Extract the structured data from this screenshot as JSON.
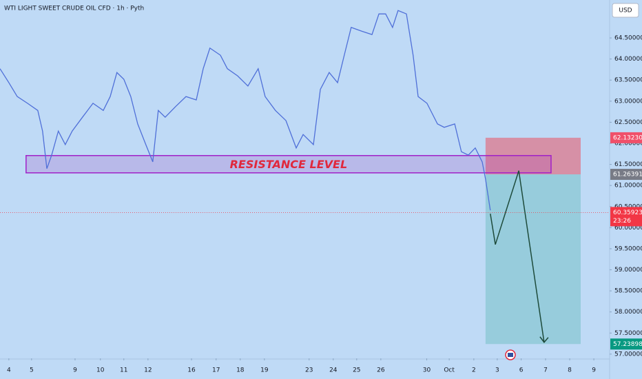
{
  "chart_data": {
    "type": "line",
    "title": "WTI LIGHT SWEET CRUDE OIL CFD · 1h · Pyth",
    "currency": "USD",
    "xlim": [
      -0.37,
      25.13
    ],
    "ylim": [
      56.9,
      65.4
    ],
    "xticks": [
      {
        "value": 0,
        "label": "4"
      },
      {
        "value": 0.95,
        "label": "5"
      },
      {
        "value": 2.77,
        "label": "9"
      },
      {
        "value": 3.83,
        "label": "10"
      },
      {
        "value": 4.81,
        "label": "11"
      },
      {
        "value": 5.82,
        "label": "12"
      },
      {
        "value": 7.64,
        "label": "16"
      },
      {
        "value": 8.67,
        "label": "17"
      },
      {
        "value": 9.68,
        "label": "18"
      },
      {
        "value": 10.69,
        "label": "19"
      },
      {
        "value": 12.56,
        "label": "23"
      },
      {
        "value": 13.57,
        "label": "24"
      },
      {
        "value": 14.55,
        "label": "25"
      },
      {
        "value": 15.56,
        "label": "26"
      },
      {
        "value": 17.48,
        "label": "30"
      },
      {
        "value": 18.42,
        "label": "Oct"
      },
      {
        "value": 19.45,
        "label": "2"
      },
      {
        "value": 20.43,
        "label": "3"
      },
      {
        "value": 21.43,
        "label": "6"
      },
      {
        "value": 22.45,
        "label": "7"
      },
      {
        "value": 23.46,
        "label": "8"
      },
      {
        "value": 24.47,
        "label": "9"
      }
    ],
    "yticks": [
      {
        "value": 57.0,
        "label": "57.00000"
      },
      {
        "value": 57.5,
        "label": "57.50000"
      },
      {
        "value": 58.0,
        "label": "58.00000"
      },
      {
        "value": 58.5,
        "label": "58.50000"
      },
      {
        "value": 59.0,
        "label": "59.00000"
      },
      {
        "value": 59.5,
        "label": "59.50000"
      },
      {
        "value": 60.0,
        "label": "60.00000"
      },
      {
        "value": 60.5,
        "label": "60.50000"
      },
      {
        "value": 61.0,
        "label": "61.00000"
      },
      {
        "value": 61.5,
        "label": "61.50000"
      },
      {
        "value": 62.0,
        "label": "62.00000"
      },
      {
        "value": 62.5,
        "label": "62.50000"
      },
      {
        "value": 63.0,
        "label": "63.00000"
      },
      {
        "value": 63.5,
        "label": "63.50000"
      },
      {
        "value": 64.0,
        "label": "64.00000"
      },
      {
        "value": 64.5,
        "label": "64.50000"
      }
    ],
    "series": [
      {
        "color": "#4f6fd8",
        "x": [
          -0.37,
          0,
          0.35,
          0.78,
          1.21,
          1.41,
          1.59,
          1.79,
          2.07,
          2.36,
          2.65,
          3.08,
          3.52,
          3.95,
          4.24,
          4.52,
          4.81,
          5.1,
          5.39,
          5.73,
          6.02,
          6.25,
          6.54,
          6.97,
          7.41,
          7.84,
          8.13,
          8.41,
          8.85,
          9.14,
          9.57,
          10.0,
          10.43,
          10.72,
          11.15,
          11.59,
          12.02,
          12.31,
          12.74,
          13.03,
          13.4,
          13.75,
          14.03,
          14.32,
          14.76,
          15.19,
          15.48,
          15.76,
          16.05,
          16.28,
          16.63,
          16.91,
          17.12,
          17.49,
          17.93,
          18.21,
          18.65,
          18.93,
          19.22,
          19.51,
          19.8,
          19.94,
          20.14
        ],
        "values": [
          63.77,
          63.44,
          63.11,
          62.95,
          62.78,
          62.29,
          61.4,
          61.72,
          62.29,
          61.97,
          62.29,
          62.62,
          62.95,
          62.78,
          63.11,
          63.68,
          63.52,
          63.11,
          62.46,
          61.97,
          61.56,
          62.78,
          62.62,
          62.87,
          63.11,
          63.03,
          63.77,
          64.26,
          64.09,
          63.77,
          63.6,
          63.36,
          63.77,
          63.11,
          62.78,
          62.54,
          61.89,
          62.21,
          61.97,
          63.28,
          63.68,
          63.44,
          64.09,
          64.75,
          64.66,
          64.58,
          65.07,
          65.07,
          64.75,
          65.15,
          65.07,
          64.09,
          63.11,
          62.95,
          62.46,
          62.38,
          62.46,
          61.8,
          61.72,
          61.89,
          61.56,
          61.15,
          60.41
        ]
      }
    ],
    "resistance_zone": {
      "label": "RESISTANCE LEVEL",
      "x": [
        0.72,
        22.68
      ],
      "y": [
        61.3,
        61.71
      ]
    },
    "trade": {
      "x": [
        19.94,
        23.92
      ],
      "stop": 62.1323,
      "stop_label": "62.13230",
      "entry": 61.26391,
      "entry_label": "61.26391",
      "target": 57.23898,
      "target_label": "57.23898"
    },
    "current_price": 60.35923,
    "current_price_label": "60.35923",
    "countdown": "23:26",
    "projection": {
      "x": [
        20.14,
        20.35,
        21.33,
        22.39
      ],
      "y": [
        60.33,
        59.6,
        61.35,
        57.28
      ]
    }
  }
}
